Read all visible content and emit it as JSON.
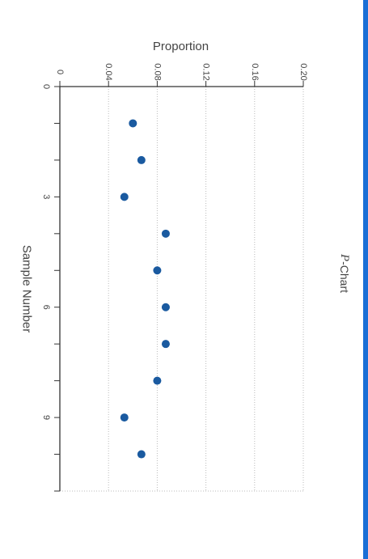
{
  "theme": {
    "accent": "#1a5aa0",
    "axis": "#333333",
    "grid": "#bbbbbb",
    "text": "#444444",
    "edge": "#1a6fd6"
  },
  "chart_data": {
    "type": "scatter",
    "title_prefix": "P",
    "title_suffix": "-Chart",
    "xlabel": "Sample Number",
    "ylabel": "Proportion",
    "xlim": [
      0,
      11
    ],
    "ylim": [
      0,
      0.2
    ],
    "x_ticks": [
      0,
      3,
      6,
      9
    ],
    "x_tick_labels": [
      "0",
      "3",
      "6",
      "9"
    ],
    "y_ticks": [
      0,
      0.04,
      0.08,
      0.12,
      0.16,
      0.2
    ],
    "y_tick_labels": [
      "0",
      "0.04",
      "0.08",
      "0.12",
      "0.16",
      "0.20"
    ],
    "grid": "horizontal-dotted",
    "orientation": "rotated-90-clockwise",
    "series": [
      {
        "x": [
          1,
          2,
          3,
          4,
          5,
          6,
          7,
          8,
          9,
          10
        ],
        "y": [
          0.06,
          0.067,
          0.053,
          0.087,
          0.08,
          0.087,
          0.087,
          0.08,
          0.053,
          0.067
        ],
        "color": "#1a5aa0"
      }
    ]
  }
}
